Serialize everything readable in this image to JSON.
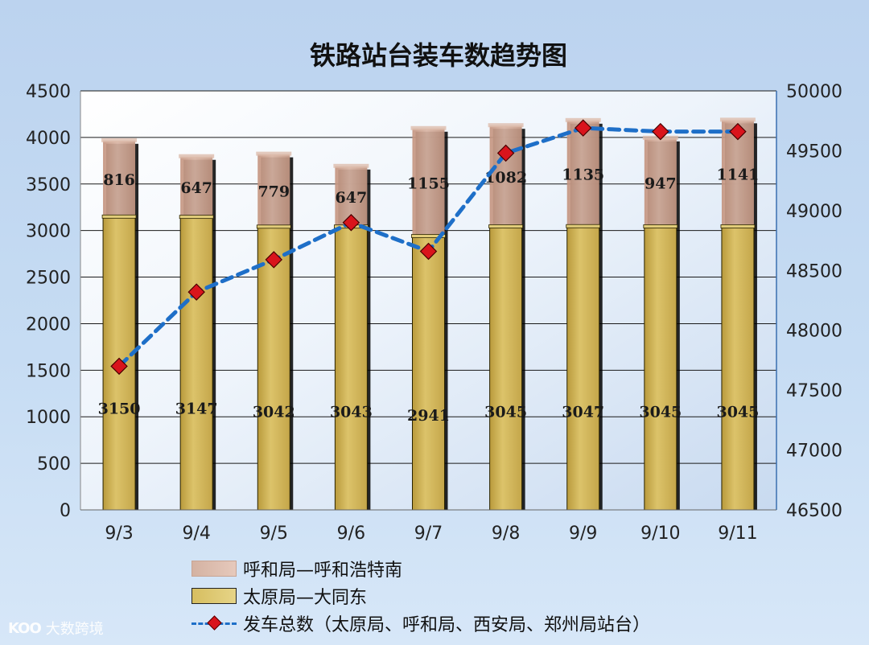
{
  "chart_data": {
    "type": "bar",
    "title": "铁路站台装车数趋势图",
    "categories": [
      "9/3",
      "9/4",
      "9/5",
      "9/6",
      "9/7",
      "9/8",
      "9/9",
      "9/10",
      "9/11"
    ],
    "stacked": true,
    "series": [
      {
        "name": "太原局—大同东",
        "type": "bar",
        "axis": "left",
        "color": "#d2b85a",
        "values": [
          3150,
          3147,
          3042,
          3043,
          2941,
          3045,
          3047,
          3045,
          3045
        ],
        "labels": [
          "3150",
          "3147",
          "3042",
          "3043",
          "2941",
          "3045",
          "3047",
          "3045",
          "3045"
        ]
      },
      {
        "name": "呼和局—呼和浩特南",
        "type": "bar",
        "axis": "left",
        "color": "#c9a08d",
        "values": [
          816,
          647,
          779,
          647,
          1155,
          1082,
          1135,
          947,
          1141
        ],
        "labels": [
          "816",
          "647",
          "779",
          "647",
          "1155",
          "1082",
          "1135",
          "947",
          "1141"
        ]
      },
      {
        "name": "发车总数（太原局、呼和局、西安局、郑州局站台）",
        "type": "line",
        "axis": "right",
        "color": "#1e6fc8",
        "marker_color": "#d9141c",
        "values": [
          47700,
          48320,
          48590,
          48900,
          48660,
          49480,
          49690,
          49660,
          49660
        ]
      }
    ],
    "ylim_left": [
      0,
      4500
    ],
    "yticks_left": [
      0,
      500,
      1000,
      1500,
      2000,
      2500,
      3000,
      3500,
      4000,
      4500
    ],
    "ylim_right": [
      46500,
      50000
    ],
    "yticks_right": [
      46500,
      47000,
      47500,
      48000,
      48500,
      49000,
      49500,
      50000
    ],
    "grid": true,
    "legend_position": "bottom",
    "legend": [
      {
        "label": "呼和局—呼和浩特南",
        "kind": "bar",
        "color": "#c9a08d"
      },
      {
        "label": "太原局—大同东",
        "kind": "bar",
        "color": "#d2b85a"
      },
      {
        "label": "发车总数（太原局、呼和局、西安局、郑州局站台）",
        "kind": "line"
      }
    ]
  },
  "watermark": {
    "logo": "KOO",
    "text": "大数跨境"
  }
}
